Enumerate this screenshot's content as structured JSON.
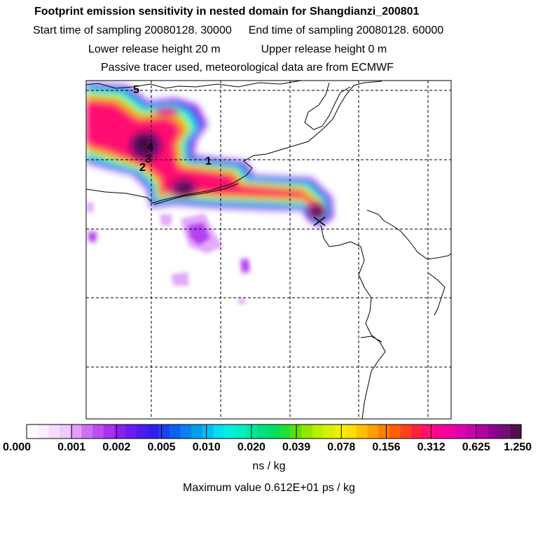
{
  "header": {
    "title": "Footprint emission sensitivity in nested domain for Shangdianzi_200801",
    "start_label": "Start time of sampling 20080128. 30000",
    "end_label": "End time of sampling 20080128. 60000",
    "lower_label": "Lower release height   20 m",
    "upper_label": "Upper release height    0 m",
    "tracer_label": "Passive tracer used, meteorological data are from ECMWF"
  },
  "colorbar": {
    "labels": [
      "0.000",
      "0.001",
      "0.002",
      "0.005",
      "0.010",
      "0.020",
      "0.039",
      "0.078",
      "0.156",
      "0.312",
      "0.625",
      "1.250"
    ],
    "colors": [
      "#ffffff",
      "#fbeefe",
      "#f5dcfd",
      "#efc8fc",
      "#e0a0fa",
      "#cc70f5",
      "#bb50f2",
      "#aa30ee",
      "#8820ee",
      "#6a1cf0",
      "#4a1cf0",
      "#3020ec",
      "#1a40f0",
      "#1060f0",
      "#0880f0",
      "#00a0f0",
      "#00c0f0",
      "#00e0f0",
      "#00f0e0",
      "#00f0c0",
      "#00e8a0",
      "#00e080",
      "#00e060",
      "#20e040",
      "#60e000",
      "#90e800",
      "#b8f000",
      "#d8f000",
      "#f0f000",
      "#ffe000",
      "#ffc000",
      "#ffa000",
      "#ff8000",
      "#ff6000",
      "#ff4020",
      "#ff2040",
      "#ff1070",
      "#ff0090",
      "#f000a0",
      "#e000b0",
      "#c800b0",
      "#b000a0",
      "#900090",
      "#701070",
      "#501050"
    ],
    "unit": "ns / kg"
  },
  "max_value_label": "Maximum value  0.612E+01 ps / kg",
  "map": {
    "grid_labels": [
      "1",
      "2",
      "3",
      "4",
      "5"
    ]
  }
}
